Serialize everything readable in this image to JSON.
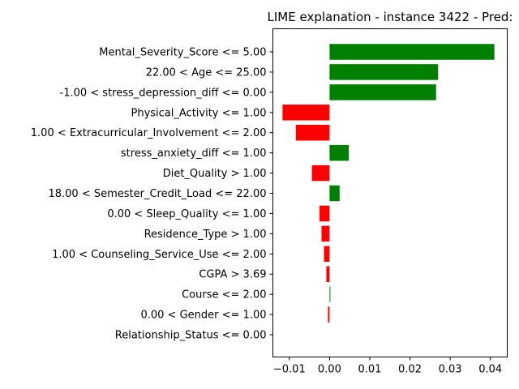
{
  "chart_data": {
    "type": "bar",
    "orientation": "horizontal",
    "title": "LIME explanation - instance 3422 - Pred:",
    "xlabel": "",
    "ylabel": "",
    "categories": [
      "Mental_Severity_Score <= 5.00",
      "22.00 < Age <= 25.00",
      "-1.00 < stress_depression_diff <= 0.00",
      "Physical_Activity <= 1.00",
      "1.00 < Extracurricular_Involvement <= 2.00",
      "stress_anxiety_diff <= 1.00",
      "Diet_Quality > 1.00",
      "18.00 < Semester_Credit_Load <= 22.00",
      "0.00 < Sleep_Quality <= 1.00",
      "Residence_Type > 1.00",
      "1.00 < Counseling_Service_Use <= 2.00",
      "CGPA > 3.69",
      "Course <= 2.00",
      "0.00 < Gender <= 1.00",
      "Relationship_Status <= 0.00"
    ],
    "values": [
      0.041,
      0.027,
      0.0265,
      -0.0117,
      -0.0084,
      0.0048,
      -0.0044,
      0.0025,
      -0.0025,
      -0.002,
      -0.0014,
      -0.0008,
      0.0002,
      -0.0004,
      0.0
    ],
    "xlim": [
      -0.0141,
      0.0442
    ],
    "xticks": [
      -0.01,
      0.0,
      0.01,
      0.02,
      0.03,
      0.04
    ],
    "xtick_labels": [
      "−0.01",
      "0.00",
      "0.01",
      "0.02",
      "0.03",
      "0.04"
    ],
    "grid": false,
    "legend": "none",
    "colors": {
      "positive": "#008000",
      "negative": "#ff0000",
      "axis": "#000000"
    }
  }
}
